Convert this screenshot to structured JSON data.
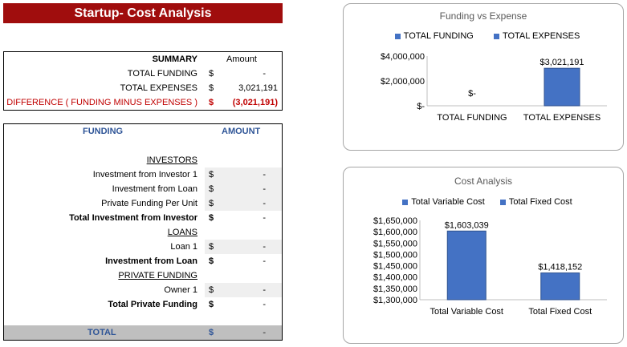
{
  "title": "Startup- Cost Analysis",
  "summary": {
    "header": "SUMMARY",
    "amount_header": "Amount",
    "rows": [
      {
        "label": "TOTAL FUNDING",
        "currency": "$",
        "value": "-"
      },
      {
        "label": "TOTAL EXPENSES",
        "currency": "$",
        "value": "3,021,191"
      },
      {
        "label": "DIFFERENCE  ( FUNDING MINUS EXPENSES )",
        "currency": "$",
        "value": "(3,021,191)"
      }
    ]
  },
  "funding": {
    "header_label": "FUNDING",
    "header_amount": "AMOUNT",
    "investors_heading": "INVESTORS",
    "investor_rows": [
      {
        "label": "Investment from Investor 1",
        "currency": "$",
        "value": "-"
      },
      {
        "label": "Investment from Loan",
        "currency": "$",
        "value": "-"
      },
      {
        "label": "Private Funding Per Unit",
        "currency": "$",
        "value": "-"
      }
    ],
    "investor_total": {
      "label": "Total Investment from Investor",
      "currency": "$",
      "value": "-"
    },
    "loans_heading": "LOANS",
    "loan_rows": [
      {
        "label": "Loan 1",
        "currency": "$",
        "value": "-"
      }
    ],
    "loan_total": {
      "label": "Investment from Loan",
      "currency": "$",
      "value": "-"
    },
    "private_heading": "PRIVATE FUNDING",
    "private_rows": [
      {
        "label": "Owner 1",
        "currency": "$",
        "value": "-"
      }
    ],
    "private_total": {
      "label": "Total Private Funding",
      "currency": "$",
      "value": "-"
    },
    "total": {
      "label": "TOTAL",
      "currency": "$",
      "value": "-"
    }
  },
  "colors": {
    "title_bg": "#a00d0d",
    "bar": "#4472c4",
    "accent_blue": "#2f5597",
    "negative": "#c00000"
  },
  "chart_data": [
    {
      "type": "bar",
      "title": "Funding vs Expense",
      "categories": [
        "TOTAL FUNDING",
        "TOTAL EXPENSES"
      ],
      "values": [
        0,
        3021191
      ],
      "value_labels": [
        "$-",
        "$3,021,191"
      ],
      "legend": [
        "TOTAL FUNDING",
        "TOTAL EXPENSES"
      ],
      "legend_position": "top",
      "ylim": [
        0,
        4000000
      ],
      "yticks": [
        0,
        2000000,
        4000000
      ],
      "ytick_labels": [
        "$-",
        "$2,000,000",
        "$4,000,000"
      ],
      "grid": false
    },
    {
      "type": "bar",
      "title": "Cost Analysis",
      "categories": [
        "Total Variable Cost",
        "Total Fixed Cost"
      ],
      "values": [
        1603039,
        1418152
      ],
      "value_labels": [
        "$1,603,039",
        "$1,418,152"
      ],
      "legend": [
        "Total Variable Cost",
        "Total Fixed Cost"
      ],
      "legend_position": "top",
      "ylim": [
        1300000,
        1650000
      ],
      "yticks": [
        1300000,
        1350000,
        1400000,
        1450000,
        1500000,
        1550000,
        1600000,
        1650000
      ],
      "ytick_labels": [
        "$1,300,000",
        "$1,350,000",
        "$1,400,000",
        "$1,450,000",
        "$1,500,000",
        "$1,550,000",
        "$1,600,000",
        "$1,650,000"
      ],
      "grid": false
    }
  ]
}
